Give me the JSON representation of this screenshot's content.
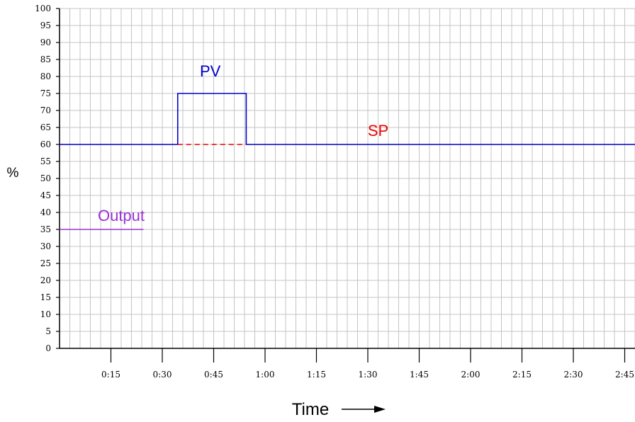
{
  "chart_data": {
    "type": "line",
    "ylabel": "%",
    "xlabel": "Time",
    "xlim_minutes": [
      0,
      168
    ],
    "ylim": [
      0,
      100
    ],
    "y_ticks": [
      "0",
      "5",
      "10",
      "15",
      "20",
      "25",
      "30",
      "35",
      "40",
      "45",
      "50",
      "55",
      "60",
      "65",
      "70",
      "75",
      "80",
      "85",
      "90",
      "95",
      "100"
    ],
    "x_ticks": [
      {
        "minutes": 15,
        "label": "0:15"
      },
      {
        "minutes": 30,
        "label": "0:30"
      },
      {
        "minutes": 45,
        "label": "0:45"
      },
      {
        "minutes": 60,
        "label": "1:00"
      },
      {
        "minutes": 75,
        "label": "1:15"
      },
      {
        "minutes": 90,
        "label": "1:30"
      },
      {
        "minutes": 105,
        "label": "1:45"
      },
      {
        "minutes": 120,
        "label": "2:00"
      },
      {
        "minutes": 135,
        "label": "2:15"
      },
      {
        "minutes": 150,
        "label": "2:30"
      },
      {
        "minutes": 165,
        "label": "2:45"
      }
    ],
    "grid": true,
    "series": [
      {
        "name": "PV",
        "color": "#0000cc",
        "points": [
          [
            0,
            60
          ],
          [
            34.5,
            60
          ],
          [
            34.5,
            75
          ],
          [
            54.5,
            75
          ],
          [
            54.5,
            60
          ],
          [
            168,
            60
          ]
        ]
      },
      {
        "name": "SP",
        "color": "#ee0000",
        "dashed": true,
        "points": [
          [
            34.5,
            60
          ],
          [
            54.5,
            60
          ]
        ]
      },
      {
        "name": "Output",
        "color": "#9b30d9",
        "points": [
          [
            0,
            35
          ],
          [
            24.5,
            35
          ]
        ]
      }
    ]
  }
}
